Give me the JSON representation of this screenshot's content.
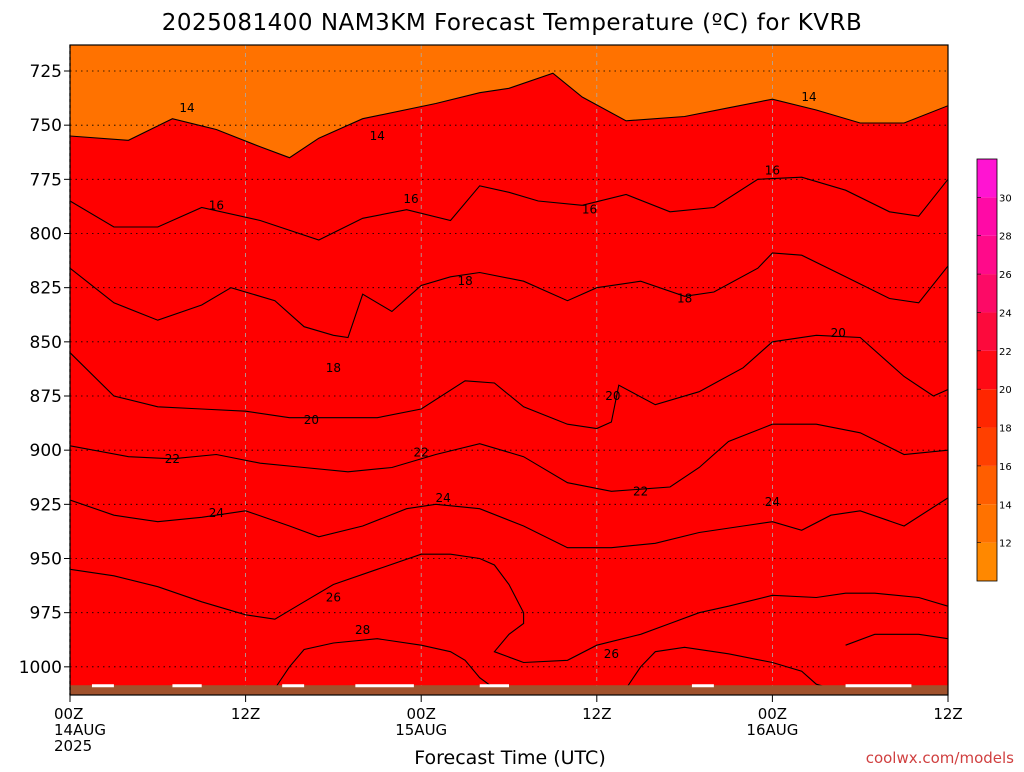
{
  "chart_data": {
    "type": "contour",
    "title": "2025081400 NAM3KM Forecast Temperature (ºC) for KVRB",
    "xlabel": "Forecast Time (UTC)",
    "credit": "coolwx.com/models",
    "x": {
      "range_hours": [
        0,
        60
      ],
      "ticks": [
        {
          "hour": 0,
          "lines": [
            "00Z",
            "14AUG",
            "2025"
          ]
        },
        {
          "hour": 12,
          "lines": [
            "12Z"
          ]
        },
        {
          "hour": 24,
          "lines": [
            "00Z",
            "15AUG"
          ]
        },
        {
          "hour": 36,
          "lines": [
            "12Z"
          ]
        },
        {
          "hour": 48,
          "lines": [
            "00Z",
            "16AUG"
          ]
        },
        {
          "hour": 60,
          "lines": [
            "12Z"
          ]
        }
      ]
    },
    "y": {
      "label": "",
      "units": "hPa",
      "range": [
        713,
        1013
      ],
      "ticks": [
        725,
        750,
        775,
        800,
        825,
        850,
        875,
        900,
        925,
        950,
        975,
        1000
      ]
    },
    "grid": true,
    "colorbar": {
      "labels": [
        "12",
        "14",
        "16",
        "18",
        "20",
        "22",
        "24",
        "26",
        "28",
        "30"
      ],
      "levels": [
        11,
        13,
        15,
        17,
        19,
        21,
        23,
        25,
        27,
        29,
        31,
        32
      ],
      "colors": [
        "#ff8800",
        "#ff7200",
        "#ff5e00",
        "#ff4000",
        "#ff2600",
        "#ff0a14",
        "#fc0a3c",
        "#fc0a66",
        "#ff0a8a",
        "#ff0aa6",
        "#ff14d2"
      ]
    },
    "bands": [
      {
        "range": [
          13,
          15
        ],
        "color": "#ff7200"
      },
      {
        "range": [
          15,
          17
        ],
        "color": "#ff5e00"
      },
      {
        "range": [
          17,
          19
        ],
        "color": "#ff4000"
      },
      {
        "range": [
          19,
          21
        ],
        "color": "#ff1e00"
      },
      {
        "range": [
          21,
          23
        ],
        "color": "#ff0a28"
      },
      {
        "range": [
          23,
          25
        ],
        "color": "#fc0a52"
      },
      {
        "range": [
          25,
          27
        ],
        "color": "#fc0a78"
      },
      {
        "range": [
          27,
          29
        ],
        "color": "#ff0a96"
      },
      {
        "range": [
          29,
          31
        ],
        "color": "#ff14c8"
      }
    ],
    "contours": [
      {
        "level": 14,
        "label": "14",
        "points": [
          [
            0,
            755
          ],
          [
            4,
            757
          ],
          [
            7,
            747
          ],
          [
            10,
            752
          ],
          [
            13,
            760
          ],
          [
            15,
            765
          ],
          [
            17,
            756
          ],
          [
            20,
            747
          ],
          [
            25,
            740
          ],
          [
            28,
            735
          ],
          [
            30,
            733
          ],
          [
            33,
            726
          ],
          [
            35,
            737
          ],
          [
            38,
            748
          ],
          [
            42,
            746
          ],
          [
            45,
            742
          ],
          [
            48,
            738
          ],
          [
            51,
            743
          ],
          [
            54,
            749
          ],
          [
            57,
            749
          ],
          [
            60,
            741
          ]
        ],
        "labels": [
          {
            "hour": 8,
            "value": 742
          },
          {
            "hour": 21,
            "value": 755
          },
          {
            "hour": 50.5,
            "value": 737
          }
        ]
      },
      {
        "level": 16,
        "label": "16",
        "points": [
          [
            0,
            785
          ],
          [
            3,
            797
          ],
          [
            6,
            797
          ],
          [
            9,
            788
          ],
          [
            13,
            794
          ],
          [
            17,
            803
          ],
          [
            20,
            793
          ],
          [
            23,
            789
          ],
          [
            26,
            794
          ],
          [
            28,
            778
          ],
          [
            30,
            781
          ],
          [
            32,
            785
          ],
          [
            35,
            787
          ],
          [
            38,
            782
          ],
          [
            41,
            790
          ],
          [
            44,
            788
          ],
          [
            47,
            775
          ],
          [
            50,
            774
          ],
          [
            53,
            780
          ],
          [
            56,
            790
          ],
          [
            58,
            792
          ],
          [
            60,
            775
          ]
        ],
        "labels": [
          {
            "hour": 10,
            "value": 787
          },
          {
            "hour": 23.3,
            "value": 784
          },
          {
            "hour": 35.5,
            "value": 789
          },
          {
            "hour": 48,
            "value": 771
          }
        ]
      },
      {
        "level": 18,
        "label": "18",
        "points": [
          [
            0,
            816
          ],
          [
            3,
            832
          ],
          [
            6,
            840
          ],
          [
            9,
            833
          ],
          [
            11,
            825
          ],
          [
            14,
            831
          ],
          [
            16,
            843
          ],
          [
            18,
            847
          ],
          [
            19,
            848
          ],
          [
            20,
            828
          ],
          [
            22,
            836
          ],
          [
            24,
            824
          ],
          [
            26,
            820
          ],
          [
            28,
            818
          ],
          [
            31,
            822
          ],
          [
            34,
            831
          ],
          [
            36,
            825
          ],
          [
            39,
            822
          ],
          [
            42,
            829
          ],
          [
            44,
            827
          ],
          [
            47,
            816
          ],
          [
            48,
            809
          ],
          [
            50,
            810
          ],
          [
            53,
            820
          ],
          [
            56,
            830
          ],
          [
            58,
            832
          ],
          [
            60,
            815
          ]
        ],
        "labels": [
          {
            "hour": 18,
            "value": 862
          },
          {
            "hour": 27,
            "value": 822
          },
          {
            "hour": 42,
            "value": 830
          }
        ]
      },
      {
        "level": 20,
        "label": "20",
        "points": [
          [
            0,
            855
          ],
          [
            3,
            875
          ],
          [
            6,
            880
          ],
          [
            9,
            881
          ],
          [
            12,
            882
          ],
          [
            15,
            885
          ],
          [
            18,
            885
          ],
          [
            21,
            885
          ],
          [
            24,
            881
          ],
          [
            27,
            868
          ],
          [
            29,
            869
          ],
          [
            31,
            880
          ],
          [
            34,
            888
          ],
          [
            36,
            890
          ],
          [
            37,
            887
          ],
          [
            37.5,
            870
          ],
          [
            40,
            879
          ],
          [
            43,
            873
          ],
          [
            46,
            862
          ],
          [
            48,
            850
          ],
          [
            51,
            847
          ],
          [
            54,
            848
          ],
          [
            57,
            866
          ],
          [
            59,
            875
          ],
          [
            60,
            872
          ]
        ],
        "labels": [
          {
            "hour": 16.5,
            "value": 886
          },
          {
            "hour": 37.1,
            "value": 875
          },
          {
            "hour": 52.5,
            "value": 846
          }
        ]
      },
      {
        "level": 22,
        "label": "22",
        "points": [
          [
            0,
            898
          ],
          [
            4,
            903
          ],
          [
            7,
            904
          ],
          [
            10,
            902
          ],
          [
            13,
            906
          ],
          [
            16,
            908
          ],
          [
            19,
            910
          ],
          [
            22,
            908
          ],
          [
            25,
            902
          ],
          [
            28,
            897
          ],
          [
            31,
            903
          ],
          [
            34,
            915
          ],
          [
            37,
            919
          ],
          [
            41,
            917
          ],
          [
            43,
            908
          ],
          [
            45,
            896
          ],
          [
            48,
            888
          ],
          [
            51,
            888
          ],
          [
            54,
            892
          ],
          [
            57,
            902
          ],
          [
            60,
            900
          ]
        ],
        "labels": [
          {
            "hour": 7,
            "value": 904
          },
          {
            "hour": 24,
            "value": 901
          },
          {
            "hour": 39,
            "value": 919
          }
        ]
      },
      {
        "level": 24,
        "label": "24",
        "points": [
          [
            0,
            923
          ],
          [
            3,
            930
          ],
          [
            6,
            933
          ],
          [
            9,
            931
          ],
          [
            12,
            928
          ],
          [
            15,
            935
          ],
          [
            17,
            940
          ],
          [
            20,
            935
          ],
          [
            23,
            927
          ],
          [
            25,
            925
          ],
          [
            28,
            927
          ],
          [
            31,
            935
          ],
          [
            34,
            945
          ],
          [
            37,
            945
          ],
          [
            40,
            943
          ],
          [
            43,
            938
          ],
          [
            46,
            935
          ],
          [
            48,
            933
          ],
          [
            50,
            937
          ],
          [
            52,
            930
          ],
          [
            54,
            928
          ],
          [
            57,
            935
          ],
          [
            60,
            922
          ]
        ],
        "labels": [
          {
            "hour": 10,
            "value": 929
          },
          {
            "hour": 25.5,
            "value": 922
          },
          {
            "hour": 48,
            "value": 924
          }
        ]
      },
      {
        "level": 26,
        "label": "26",
        "points": [
          [
            0,
            955
          ],
          [
            3,
            958
          ],
          [
            6,
            963
          ],
          [
            9,
            970
          ],
          [
            12,
            976
          ],
          [
            14,
            978
          ],
          [
            16,
            970
          ],
          [
            18,
            962
          ],
          [
            21,
            955
          ],
          [
            24,
            948
          ],
          [
            26,
            948
          ],
          [
            28,
            950
          ],
          [
            29,
            953
          ],
          [
            30,
            962
          ],
          [
            31,
            975
          ],
          [
            31,
            980
          ],
          [
            30,
            985
          ],
          [
            29,
            993
          ],
          [
            31,
            998
          ],
          [
            34,
            997
          ],
          [
            36,
            990
          ],
          [
            39,
            985
          ],
          [
            41,
            980
          ],
          [
            43,
            975
          ],
          [
            45,
            972
          ],
          [
            48,
            967
          ],
          [
            51,
            968
          ],
          [
            53,
            966
          ],
          [
            55,
            966
          ],
          [
            58,
            968
          ],
          [
            60,
            972
          ]
        ],
        "labels": [
          {
            "hour": 18,
            "value": 968
          },
          {
            "hour": 37,
            "value": 994
          }
        ]
      },
      {
        "level": 28,
        "label": "28",
        "points": [
          [
            14,
            1010
          ],
          [
            15,
            1000
          ],
          [
            16,
            992
          ],
          [
            18,
            989
          ],
          [
            21,
            987
          ],
          [
            24,
            990
          ],
          [
            26,
            993
          ],
          [
            27,
            997
          ],
          [
            28,
            1005
          ],
          [
            29,
            1010
          ]
        ],
        "labels": [
          {
            "hour": 20,
            "value": 983
          }
        ]
      },
      {
        "level": 28,
        "label": "28",
        "points": [
          [
            38,
            1010
          ],
          [
            39,
            1000
          ],
          [
            40,
            993
          ],
          [
            42,
            991
          ],
          [
            45,
            994
          ],
          [
            48,
            998
          ],
          [
            50,
            1002
          ],
          [
            51,
            1008
          ],
          [
            52,
            1010
          ]
        ],
        "labels": []
      },
      {
        "level": 26,
        "label": "26",
        "points": [
          [
            53,
            990
          ],
          [
            55,
            985
          ],
          [
            58,
            985
          ],
          [
            60,
            987
          ]
        ],
        "labels": []
      }
    ],
    "terrain": {
      "surface_pressure": 1013,
      "color": "#a0522d"
    }
  }
}
